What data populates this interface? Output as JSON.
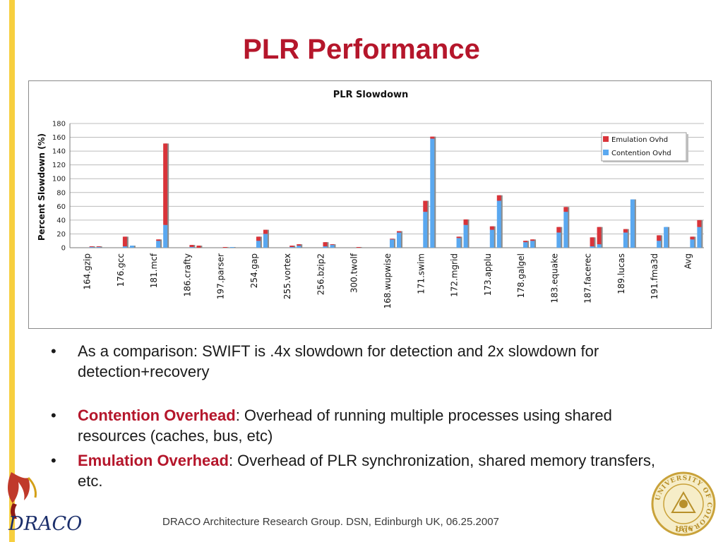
{
  "slide": {
    "title": "PLR Performance",
    "footer": "DRACO Architecture Research Group.  DSN, Edinburgh UK, 06.25.2007",
    "bullet_glyph": "•",
    "bullets": [
      {
        "term": "",
        "text": "As a comparison: SWIFT is .4x slowdown for detection and 2x slowdown for detection+recovery"
      },
      {
        "term": "Contention Overhead",
        "text": ": Overhead of running multiple processes using shared resources (caches, bus, etc)"
      },
      {
        "term": "Emulation Overhead",
        "text": ": Overhead of PLR synchronization, shared memory transfers, etc."
      }
    ],
    "logo": {
      "text": "DRACO",
      "icon": "draco-dragon-logo"
    },
    "seal": {
      "text": "UNIVERSITY OF COLORADO",
      "year": "1876",
      "icon": "university-seal"
    },
    "colors": {
      "title": "#b5162b",
      "accent_stripe": "#f7cf3f",
      "emulation": "#d9343a",
      "contention": "#5aa8f0"
    }
  },
  "chart_data": {
    "type": "bar",
    "stacked": true,
    "title": "PLR Slowdown",
    "ylabel": "Percent Slowdown (%)",
    "xlabel": "",
    "ylim": [
      0,
      180
    ],
    "yticks": [
      0,
      20,
      40,
      60,
      80,
      100,
      120,
      140,
      160,
      180
    ],
    "grid": true,
    "legend_position": "top-right",
    "categories": [
      "164.gzip",
      "176.gcc",
      "181.mcf",
      "186.crafty",
      "197.parser",
      "254.gap",
      "255.vortex",
      "256.bzip2",
      "300.twolf",
      "168.wupwise",
      "171.swim",
      "172.mgrid",
      "173.applu",
      "178.galgel",
      "183.equake",
      "187.facerec",
      "189.lucas",
      "191.fma3d",
      "Avg"
    ],
    "series": [
      {
        "name": "Contention Ovhd",
        "color": "#5aa8f0",
        "values": [
          1,
          3,
          33,
          0,
          1,
          20,
          3,
          4,
          0,
          22,
          158,
          33,
          68,
          10,
          52,
          5,
          70,
          30,
          30
        ]
      },
      {
        "name": "Emulation Ovhd",
        "color": "#d9343a",
        "values": [
          1,
          0,
          118,
          3,
          0,
          6,
          2,
          1,
          0,
          2,
          3,
          8,
          8,
          2,
          7,
          25,
          0,
          0,
          10
        ]
      }
    ],
    "left_bars": [
      {
        "contention": 1,
        "emulation": 1
      },
      {
        "contention": 2,
        "emulation": 14
      },
      {
        "contention": 10,
        "emulation": 2
      },
      {
        "contention": 1,
        "emulation": 3
      },
      {
        "contention": 0,
        "emulation": 1
      },
      {
        "contention": 10,
        "emulation": 6
      },
      {
        "contention": 1,
        "emulation": 2
      },
      {
        "contention": 2,
        "emulation": 6
      },
      {
        "contention": 0,
        "emulation": 1
      },
      {
        "contention": 12,
        "emulation": 1
      },
      {
        "contention": 52,
        "emulation": 16
      },
      {
        "contention": 14,
        "emulation": 2
      },
      {
        "contention": 26,
        "emulation": 5
      },
      {
        "contention": 8,
        "emulation": 2
      },
      {
        "contention": 22,
        "emulation": 8
      },
      {
        "contention": 2,
        "emulation": 13
      },
      {
        "contention": 22,
        "emulation": 5
      },
      {
        "contention": 10,
        "emulation": 8
      },
      {
        "contention": 12,
        "emulation": 4
      }
    ]
  }
}
